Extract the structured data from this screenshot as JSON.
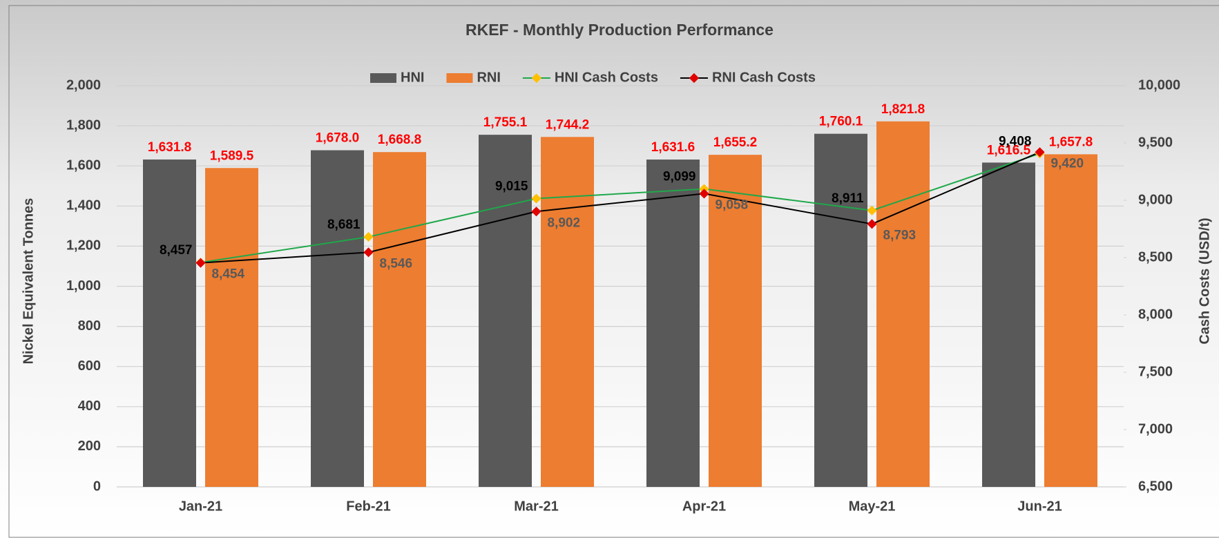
{
  "chart_data": {
    "type": "combo",
    "title": "RKEF - Monthly Production Performance",
    "y_label": "Nickel Equivalent Tonnes",
    "y2_label": "Cash Costs (USD/t)",
    "categories": [
      "Jan-21",
      "Feb-21",
      "Mar-21",
      "Apr-21",
      "May-21",
      "Jun-21"
    ],
    "series": [
      {
        "name": "HNI",
        "type": "bar",
        "color": "#595959",
        "values": [
          1631.8,
          1678.0,
          1755.1,
          1631.6,
          1760.1,
          1616.5
        ],
        "value_labels": [
          "1,631.8",
          "1,678.0",
          "1,755.1",
          "1,631.6",
          "1,760.1",
          "1,616.5"
        ]
      },
      {
        "name": "RNI",
        "type": "bar",
        "color": "#ed7d31",
        "values": [
          1589.5,
          1668.8,
          1744.2,
          1655.2,
          1821.8,
          1657.8
        ],
        "value_labels": [
          "1,589.5",
          "1,668.8",
          "1,744.2",
          "1,655.2",
          "1,821.8",
          "1,657.8"
        ]
      },
      {
        "name": "HNI Cash Costs",
        "type": "line",
        "axis": "y2",
        "color": "#1fa84a",
        "marker_color": "#ffc000",
        "values": [
          8457,
          8681,
          9015,
          9099,
          8911,
          9408
        ],
        "value_labels": [
          "8,457",
          "8,681",
          "9,015",
          "9,099",
          "8,911",
          "9,408"
        ]
      },
      {
        "name": "RNI Cash Costs",
        "type": "line",
        "axis": "y2",
        "color": "#000000",
        "marker_color": "#e00000",
        "values": [
          8454,
          8546,
          8902,
          9058,
          8793,
          9420
        ],
        "value_labels": [
          "8,454",
          "8,546",
          "8,902",
          "9,058",
          "8,793",
          "9,420"
        ]
      }
    ],
    "ylim": [
      0,
      2000
    ],
    "yticks": [
      0,
      200,
      400,
      600,
      800,
      {
        "value": 1000,
        "label": "1,000"
      },
      {
        "value": 1200,
        "label": "1,200"
      },
      {
        "value": 1400,
        "label": "1,400"
      },
      {
        "value": 1600,
        "label": "1,600"
      },
      {
        "value": 1800,
        "label": "1,800"
      },
      {
        "value": 2000,
        "label": "2,000"
      }
    ],
    "y2lim": [
      6500,
      10000
    ],
    "y2ticks": [
      {
        "value": 6500,
        "label": "6,500"
      },
      {
        "value": 7000,
        "label": "7,000"
      },
      {
        "value": 7500,
        "label": "7,500"
      },
      {
        "value": 8000,
        "label": "8,000"
      },
      {
        "value": 8500,
        "label": "8,500"
      },
      {
        "value": 9000,
        "label": "9,000"
      },
      {
        "value": 9500,
        "label": "9,500"
      },
      {
        "value": 10000,
        "label": "10,000"
      }
    ],
    "grid": true,
    "legend": "top"
  }
}
